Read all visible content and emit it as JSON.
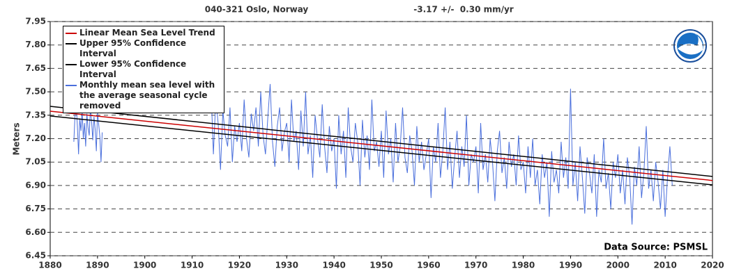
{
  "chart_data": {
    "type": "line",
    "title": "040-321 Oslo, Norway",
    "subtitle": "-3.17 +/-  0.30 mm/yr",
    "y_label": "Meters",
    "annotation": "Data Source: PSMSL",
    "xlim": [
      1880,
      2020
    ],
    "xticks": [
      1880,
      1890,
      1900,
      1910,
      1920,
      1930,
      1940,
      1950,
      1960,
      1970,
      1980,
      1990,
      2000,
      2010,
      2020
    ],
    "ylim": [
      6.45,
      7.95
    ],
    "yticks": [
      6.45,
      {
        "value": 6.6,
        "label": "6.60"
      },
      6.75,
      {
        "value": 6.9,
        "label": "6.90"
      },
      7.05,
      {
        "value": 7.2,
        "label": "7.20"
      },
      7.35,
      {
        "value": 7.5,
        "label": "7.50"
      },
      7.65,
      {
        "value": 7.8,
        "label": "7.80"
      },
      7.95
    ],
    "grid": true,
    "series": [
      {
        "name": "Linear Mean Sea Level Trend",
        "color": "#cc0000",
        "x": [
          1880,
          2020
        ],
        "values": [
          7.376,
          6.932
        ]
      },
      {
        "name": "Upper 95% Confidence Interval",
        "color": "#000000",
        "x": [
          1880,
          2020
        ],
        "values": [
          7.407,
          6.958
        ]
      },
      {
        "name": "Lower 95% Confidence Interval",
        "color": "#000000",
        "x": [
          1880,
          2020
        ],
        "values": [
          7.345,
          6.904
        ]
      },
      {
        "name": "Monthly mean sea level with the average seasonal cycle removed",
        "color": "#4a6fdc",
        "x": [
          1885,
          1885.25,
          1885.5,
          1885.75,
          1886,
          1886.25,
          1886.5,
          1886.75,
          1887,
          1887.25,
          1887.5,
          1887.75,
          1888,
          1888.25,
          1888.5,
          1888.75,
          1889,
          1889.25,
          1889.5,
          1889.75,
          1890,
          1890.25,
          1890.5,
          1890.75,
          1891,
          1900,
          1914,
          1914.5,
          1915,
          1915.5,
          1916,
          1916.5,
          1917,
          1917.5,
          1918,
          1918.5,
          1919,
          1919.5,
          1920,
          1920.5,
          1921,
          1921.5,
          1922,
          1922.5,
          1923,
          1923.5,
          1924,
          1924.5,
          1925,
          1925.5,
          1926,
          1926.5,
          1927,
          1927.5,
          1928,
          1928.5,
          1929,
          1929.5,
          1930,
          1930.5,
          1931,
          1931.5,
          1932,
          1932.5,
          1933,
          1933.5,
          1934,
          1934.5,
          1935,
          1935.5,
          1936,
          1936.5,
          1937,
          1937.5,
          1938,
          1938.5,
          1939,
          1939.5,
          1940,
          1940.5,
          1941,
          1941.5,
          1942,
          1942.5,
          1943,
          1943.5,
          1944,
          1944.5,
          1945,
          1945.5,
          1946,
          1946.5,
          1947,
          1947.5,
          1948,
          1948.5,
          1949,
          1949.5,
          1950,
          1950.5,
          1951,
          1951.5,
          1952,
          1952.5,
          1953,
          1953.5,
          1954,
          1954.5,
          1955,
          1955.5,
          1956,
          1956.5,
          1957,
          1957.5,
          1958,
          1958.5,
          1959,
          1959.5,
          1960,
          1960.5,
          1961,
          1961.5,
          1962,
          1962.5,
          1963,
          1963.5,
          1964,
          1964.5,
          1965,
          1965.5,
          1966,
          1966.5,
          1967,
          1967.5,
          1968,
          1968.5,
          1969,
          1969.5,
          1970,
          1970.5,
          1971,
          1971.5,
          1972,
          1972.5,
          1973,
          1973.5,
          1974,
          1974.5,
          1975,
          1975.5,
          1976,
          1976.5,
          1977,
          1977.5,
          1978,
          1978.5,
          1979,
          1979.5,
          1980,
          1980.5,
          1981,
          1981.5,
          1982,
          1982.5,
          1983,
          1983.5,
          1984,
          1984.5,
          1985,
          1985.5,
          1986,
          1986.5,
          1987,
          1987.5,
          1988,
          1988.5,
          1989,
          1989.5,
          1990,
          1990.5,
          1991,
          1991.5,
          1992,
          1992.5,
          1993,
          1993.5,
          1994,
          1994.5,
          1995,
          1995.5,
          1996,
          1996.5,
          1997,
          1997.5,
          1998,
          1998.5,
          1999,
          1999.5,
          2000,
          2000.5,
          2001,
          2001.5,
          2002,
          2002.5,
          2003,
          2003.5,
          2004,
          2004.5,
          2005,
          2005.5,
          2006,
          2006.5,
          2007,
          2007.5,
          2008,
          2008.5,
          2009,
          2009.5,
          2010,
          2010.5,
          2011,
          2011.5
        ],
        "values": [
          7.18,
          7.35,
          7.42,
          7.28,
          7.1,
          7.33,
          7.25,
          7.38,
          7.2,
          7.3,
          7.15,
          7.36,
          7.27,
          7.22,
          7.4,
          7.31,
          7.19,
          7.34,
          7.26,
          7.12,
          7.37,
          7.29,
          7.21,
          7.05,
          7.24,
          null,
          7.52,
          7.1,
          7.45,
          7.3,
          7.0,
          7.38,
          7.22,
          7.15,
          7.4,
          7.05,
          7.28,
          7.18,
          7.3,
          7.12,
          7.45,
          7.2,
          7.08,
          7.36,
          7.25,
          7.4,
          7.15,
          7.5,
          7.22,
          7.1,
          7.33,
          7.55,
          7.18,
          7.02,
          7.28,
          7.4,
          7.12,
          7.24,
          7.3,
          7.05,
          7.45,
          7.18,
          7.25,
          7.0,
          7.38,
          7.15,
          7.5,
          7.1,
          7.22,
          6.95,
          7.35,
          7.2,
          7.08,
          7.42,
          7.15,
          6.98,
          7.28,
          7.12,
          7.2,
          6.88,
          7.35,
          7.1,
          7.25,
          6.95,
          7.4,
          7.15,
          7.05,
          7.3,
          7.18,
          6.9,
          7.32,
          7.08,
          7.22,
          7.0,
          7.45,
          7.12,
          7.18,
          7.02,
          7.25,
          6.95,
          7.38,
          7.1,
          7.2,
          6.92,
          7.3,
          7.05,
          7.15,
          7.4,
          7.08,
          6.98,
          7.22,
          7.12,
          6.9,
          7.28,
          7.05,
          7.18,
          7.0,
          7.1,
          7.2,
          6.82,
          7.15,
          7.05,
          7.3,
          6.95,
          7.12,
          7.4,
          7.0,
          7.18,
          6.88,
          7.08,
          7.25,
          6.95,
          7.15,
          7.02,
          7.35,
          6.9,
          7.1,
          7.05,
          7.15,
          6.85,
          7.3,
          7.0,
          7.1,
          6.92,
          7.2,
          7.05,
          6.8,
          7.12,
          7.25,
          6.98,
          7.08,
          6.88,
          7.18,
          7.02,
          7.1,
          6.9,
          7.22,
          7.0,
          7.05,
          6.85,
          7.15,
          6.95,
          7.2,
          6.9,
          7.0,
          6.78,
          7.1,
          6.95,
          7.05,
          6.7,
          7.12,
          6.92,
          7.0,
          6.85,
          7.18,
          6.95,
          7.08,
          6.88,
          7.52,
          6.9,
          7.05,
          6.8,
          7.15,
          6.95,
          6.72,
          7.08,
          6.98,
          6.85,
          7.1,
          6.7,
          7.0,
          6.92,
          7.2,
          6.88,
          6.98,
          6.75,
          7.05,
          6.95,
          7.1,
          6.85,
          7.0,
          6.78,
          7.08,
          6.95,
          6.65,
          7.02,
          6.9,
          7.15,
          6.82,
          6.98,
          7.28,
          6.88,
          7.0,
          6.8,
          7.05,
          6.92,
          6.75,
          7.0,
          6.7,
          6.95,
          7.15,
          6.9
        ]
      }
    ]
  }
}
